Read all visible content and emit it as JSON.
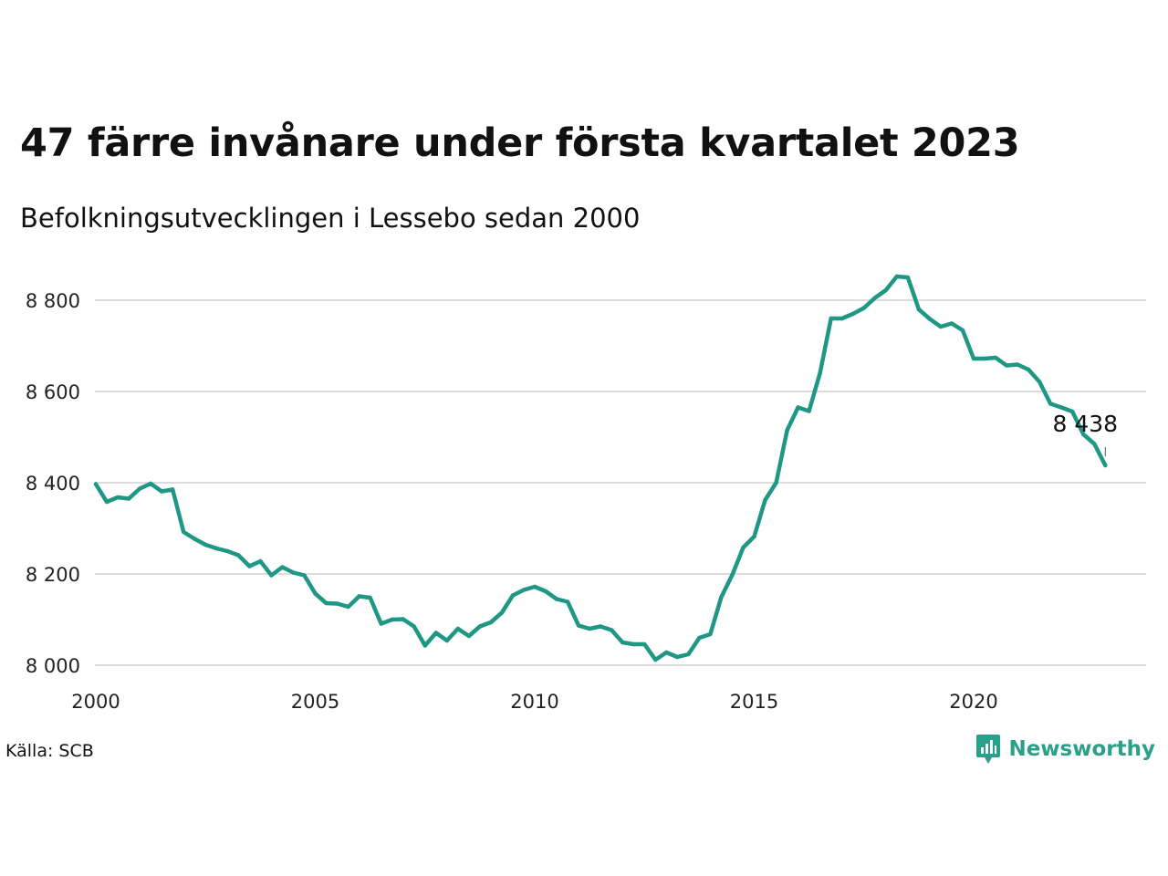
{
  "header": {
    "title": "47 färre invånare under första kvartalet 2023",
    "subtitle": "Befolkningsutvecklingen i Lessebo sedan 2000"
  },
  "footer": {
    "source": "Källa: SCB",
    "brand": "Newsworthy",
    "brand_icon": "newsworthy-logo-icon"
  },
  "colors": {
    "line": "#1f9785",
    "grid": "#dcdcdc",
    "brand": "#2aa08a"
  },
  "chart_data": {
    "type": "line",
    "x_label_ticks": [
      "2000",
      "2005",
      "2010",
      "2015",
      "2020"
    ],
    "y_label_ticks": [
      "8 000",
      "8 200",
      "8 400",
      "8 600",
      "8 800"
    ],
    "xlim": [
      2000,
      2024
    ],
    "ylim": [
      8000,
      8900
    ],
    "grid": true,
    "series": [
      {
        "x": [
          2000.0,
          2000.25,
          2000.5,
          2000.75,
          2001.0,
          2001.25,
          2001.5,
          2001.75,
          2002.0,
          2002.25,
          2002.5,
          2002.75,
          2003.0,
          2003.25,
          2003.5,
          2003.75,
          2004.0,
          2004.25,
          2004.5,
          2004.75,
          2005.0,
          2005.25,
          2005.5,
          2005.75,
          2006.0,
          2006.25,
          2006.5,
          2006.75,
          2007.0,
          2007.25,
          2007.5,
          2007.75,
          2008.0,
          2008.25,
          2008.5,
          2008.75,
          2009.0,
          2009.25,
          2009.5,
          2009.75,
          2010.0,
          2010.25,
          2010.5,
          2010.75,
          2011.0,
          2011.25,
          2011.5,
          2011.75,
          2012.0,
          2012.25,
          2012.5,
          2012.75,
          2013.0,
          2013.25,
          2013.5,
          2013.75,
          2014.0,
          2014.25,
          2014.5,
          2014.75,
          2015.0,
          2015.25,
          2015.5,
          2015.75,
          2016.0,
          2016.25,
          2016.5,
          2016.75,
          2017.0,
          2017.25,
          2017.5,
          2017.75,
          2018.0,
          2018.25,
          2018.5,
          2018.75,
          2019.0,
          2019.25,
          2019.5,
          2019.75,
          2020.0,
          2020.25,
          2020.5,
          2020.75,
          2021.0,
          2021.25,
          2021.5,
          2021.75,
          2022.0,
          2022.25,
          2022.5,
          2022.75,
          2023.0
        ],
        "values": [
          8397,
          8358,
          8368,
          8365,
          8387,
          8398,
          8381,
          8385,
          8292,
          8277,
          8264,
          8256,
          8250,
          8241,
          8217,
          8228,
          8197,
          8215,
          8203,
          8197,
          8157,
          8136,
          8135,
          8128,
          8151,
          8148,
          8091,
          8100,
          8101,
          8085,
          8043,
          8071,
          8054,
          8080,
          8064,
          8085,
          8094,
          8115,
          8153,
          8165,
          8172,
          8162,
          8145,
          8139,
          8087,
          8080,
          8085,
          8077,
          8050,
          8046,
          8046,
          8012,
          8028,
          8018,
          8024,
          8060,
          8068,
          8149,
          8198,
          8258,
          8282,
          8362,
          8400,
          8515,
          8565,
          8557,
          8640,
          8760,
          8760,
          8770,
          8783,
          8805,
          8822,
          8852,
          8850,
          8780,
          8759,
          8742,
          8749,
          8734,
          8672,
          8672,
          8674,
          8657,
          8659,
          8648,
          8621,
          8573,
          8565,
          8556,
          8506,
          8485,
          8438
        ]
      }
    ],
    "end_label": "8 438"
  }
}
